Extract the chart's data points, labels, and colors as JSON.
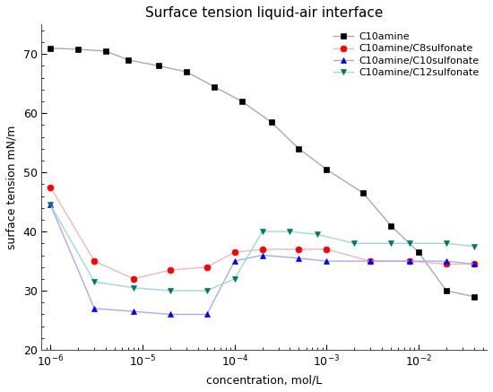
{
  "title": "Surface tension liquid-air interface",
  "xlabel": "concentration, mol/L",
  "ylabel": "surface tension mN/m",
  "ylim": [
    20,
    75
  ],
  "xlim": [
    8e-07,
    0.055
  ],
  "series": [
    {
      "label": "C10amine",
      "line_color": "#aaaaaa",
      "marker": "s",
      "marker_fc": "black",
      "marker_ec": "black",
      "x": [
        1e-06,
        2e-06,
        4e-06,
        7e-06,
        1.5e-05,
        3e-05,
        6e-05,
        0.00012,
        0.00025,
        0.0005,
        0.001,
        0.0025,
        0.005,
        0.01,
        0.02,
        0.04
      ],
      "y": [
        71.0,
        70.8,
        70.5,
        69.0,
        68.0,
        67.0,
        64.5,
        62.0,
        58.5,
        54.0,
        50.5,
        46.5,
        41.0,
        36.5,
        30.0,
        29.0
      ]
    },
    {
      "label": "C10amine/C8sulfonate",
      "line_color": "#f0b8b8",
      "marker": "o",
      "marker_fc": "red",
      "marker_ec": "red",
      "x": [
        1e-06,
        3e-06,
        8e-06,
        2e-05,
        5e-05,
        0.0001,
        0.0002,
        0.0005,
        0.001,
        0.003,
        0.008,
        0.02,
        0.04
      ],
      "y": [
        47.5,
        35.0,
        32.0,
        33.5,
        34.0,
        36.5,
        37.0,
        37.0,
        37.0,
        35.0,
        35.0,
        34.5,
        34.5
      ]
    },
    {
      "label": "C10amine/C10sulfonate",
      "line_color": "#aaaaee",
      "marker": "^",
      "marker_fc": "blue",
      "marker_ec": "blue",
      "x": [
        1e-06,
        3e-06,
        8e-06,
        2e-05,
        5e-05,
        0.0001,
        0.0002,
        0.0005,
        0.001,
        0.003,
        0.008,
        0.02,
        0.04
      ],
      "y": [
        44.5,
        27.0,
        26.5,
        26.0,
        26.0,
        35.0,
        36.0,
        35.5,
        35.0,
        35.0,
        35.0,
        35.0,
        34.5
      ]
    },
    {
      "label": "C10amine/C12sulfonate",
      "line_color": "#99ddcc",
      "marker": "v",
      "marker_fc": "#007766",
      "marker_ec": "#007766",
      "x": [
        1e-06,
        3e-06,
        8e-06,
        2e-05,
        5e-05,
        0.0001,
        0.0002,
        0.0004,
        0.0008,
        0.002,
        0.005,
        0.008,
        0.02,
        0.04
      ],
      "y": [
        44.5,
        31.5,
        30.5,
        30.0,
        30.0,
        32.0,
        40.0,
        40.0,
        39.5,
        38.0,
        38.0,
        38.0,
        38.0,
        37.5
      ]
    }
  ],
  "figsize": [
    5.5,
    4.37
  ],
  "dpi": 100
}
